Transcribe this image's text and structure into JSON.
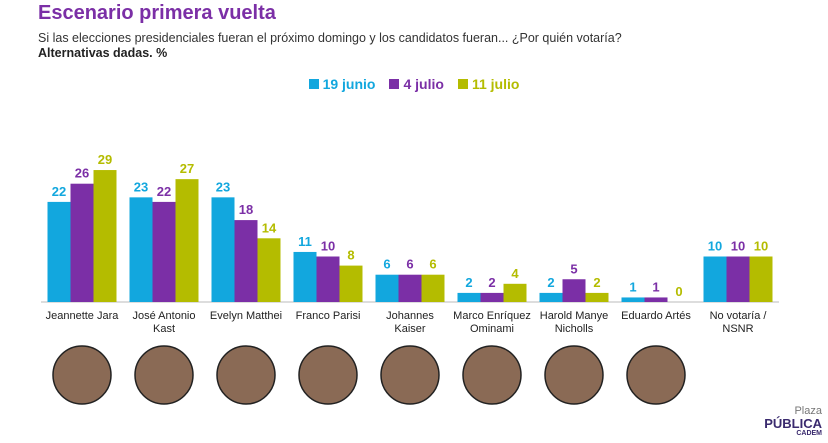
{
  "chart_data": {
    "type": "bar",
    "title": "Escenario primera vuelta",
    "subtitle": "Si las elecciones presidenciales fueran el próximo domingo y los candidatos fueran... ¿Por quién votaría?",
    "note": "Alternativas dadas. %",
    "categories": [
      "Jeannette Jara",
      "José Antonio\nKast",
      "Evelyn Matthei",
      "Franco Parisi",
      "Johannes\nKaiser",
      "Marco Enríquez\nOminami",
      "Harold Manye\nNicholls",
      "Eduardo Artés",
      "No votaría /\nNSNR"
    ],
    "series": [
      {
        "name": "19 junio",
        "color": "#12a7de",
        "values": [
          22,
          23,
          23,
          11,
          6,
          2,
          2,
          1,
          10
        ]
      },
      {
        "name": "4 julio",
        "color": "#7b2fa6",
        "values": [
          26,
          22,
          18,
          10,
          6,
          2,
          5,
          1,
          10
        ]
      },
      {
        "name": "11 julio",
        "color": "#b4bc00",
        "values": [
          29,
          27,
          14,
          8,
          6,
          4,
          2,
          0,
          10
        ]
      }
    ]
  },
  "logo": {
    "top": "Plaza",
    "main": "PÚBLICA",
    "sub": "CADEM"
  }
}
